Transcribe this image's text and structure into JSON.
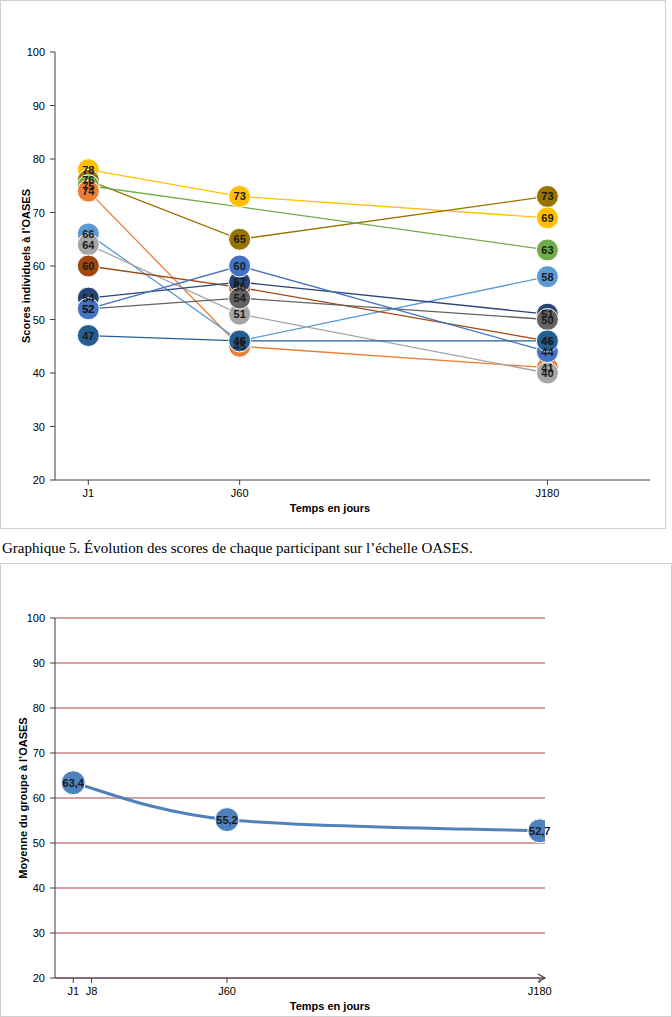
{
  "chart_data": [
    {
      "type": "line",
      "caption": "Graphique 5. Évolution des scores de chaque participant sur l’échelle OASES.",
      "x_label": "Temps en jours",
      "y_label": "Scores individuels à l’OASES",
      "x": [
        1,
        60,
        180
      ],
      "xlim": [
        -12,
        220
      ],
      "xticks": [
        {
          "value": 1,
          "label": "J1"
        },
        {
          "value": 60,
          "label": "J60"
        },
        {
          "value": 180,
          "label": "J180"
        }
      ],
      "ylim": [
        20,
        100
      ],
      "yticks": [
        20,
        30,
        40,
        50,
        60,
        70,
        80,
        90,
        100
      ],
      "grid": false,
      "data_labels": true,
      "marker": "circle",
      "line_style": "solid",
      "series": [
        {
          "color": "#FFC000",
          "values": [
            78,
            73,
            69
          ]
        },
        {
          "color": "#997300",
          "values": [
            76,
            65,
            73
          ]
        },
        {
          "color": "#70AD47",
          "x": [
            1,
            180
          ],
          "values": [
            75,
            63
          ]
        },
        {
          "color": "#ED7D31",
          "values": [
            74,
            45,
            41
          ]
        },
        {
          "color": "#5B9BD5",
          "values": [
            66,
            46,
            58
          ]
        },
        {
          "color": "#A5A5A5",
          "values": [
            64,
            51,
            40
          ]
        },
        {
          "color": "#9E480E",
          "values": [
            60,
            56,
            46
          ]
        },
        {
          "color": "#264478",
          "values": [
            54,
            57,
            51
          ]
        },
        {
          "color": "#636363",
          "values": [
            52,
            54,
            50
          ]
        },
        {
          "color": "#4472C4",
          "values": [
            52,
            60,
            44
          ]
        },
        {
          "color": "#255E91",
          "values": [
            47,
            46,
            46
          ]
        }
      ]
    },
    {
      "type": "line",
      "x_label": "Temps en jours",
      "y_label": "Moyenne du groupe à l’OASES",
      "x": [
        1,
        60,
        180
      ],
      "xlim": [
        -6,
        182
      ],
      "xticks": [
        {
          "value": 1,
          "label": "J1"
        },
        {
          "value": 8,
          "label": "J8"
        },
        {
          "value": 60,
          "label": "J60"
        },
        {
          "value": 180,
          "label": "J180"
        }
      ],
      "ylim": [
        20,
        100
      ],
      "yticks": [
        20,
        30,
        40,
        50,
        60,
        70,
        80,
        90,
        100
      ],
      "grid": true,
      "data_labels": true,
      "series": [
        {
          "color": "#4F81BD",
          "marker": "circle",
          "line_style": "smooth",
          "values": [
            63.4,
            55.2,
            52.7
          ],
          "value_labels": [
            "63,4",
            "55,2",
            "52,7"
          ]
        }
      ]
    }
  ]
}
